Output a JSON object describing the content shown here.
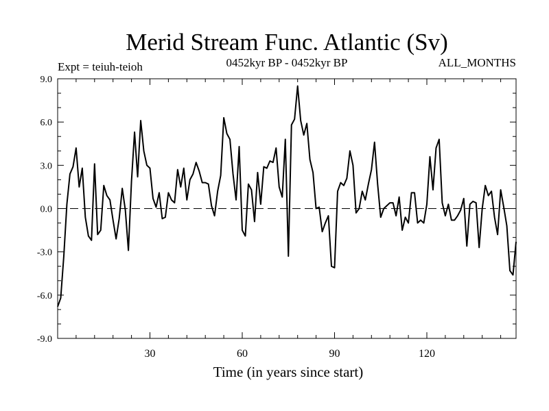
{
  "chart_data": {
    "type": "line",
    "title": "Merid Stream Func. Atlantic (Sv)",
    "subtitle_left": "Expt = teiuh-teioh",
    "subtitle_center": "0452kyr BP - 0452kyr BP",
    "subtitle_right": "ALL_MONTHS",
    "xlabel": "Time (in years since start)",
    "ylabel": "",
    "xlim": [
      0,
      149
    ],
    "ylim": [
      -9,
      9
    ],
    "xticks": [
      30,
      60,
      90,
      120
    ],
    "xtick_labels": [
      "30",
      "60",
      "90",
      "120"
    ],
    "yticks": [
      9,
      6,
      3,
      0,
      -3,
      -6,
      -9
    ],
    "ytick_labels": [
      "9.0",
      "6.0",
      "3.0",
      "0.0",
      "-3.0",
      "-6.0",
      "-9.0"
    ],
    "zero_line": true,
    "grid": false,
    "series": [
      {
        "values": [
          -6.8,
          -6.2,
          -3.3,
          0.3,
          2.4,
          2.9,
          4.2,
          1.5,
          2.8,
          -0.6,
          -1.9,
          -2.2,
          3.1,
          -1.8,
          -1.5,
          1.6,
          0.9,
          0.6,
          -0.8,
          -2.1,
          -0.7,
          1.4,
          -0.1,
          -2.9,
          1.9,
          5.3,
          2.2,
          6.1,
          4.0,
          3.0,
          2.8,
          0.7,
          0.1,
          1.1,
          -0.7,
          -0.6,
          1.1,
          0.6,
          0.4,
          2.7,
          1.5,
          2.8,
          0.6,
          2.0,
          2.4,
          3.2,
          2.6,
          1.8,
          1.8,
          1.7,
          0.2,
          -0.5,
          1.2,
          2.3,
          6.3,
          5.2,
          4.8,
          2.4,
          0.6,
          4.3,
          -1.5,
          -1.9,
          1.7,
          1.3,
          -0.9,
          2.5,
          0.3,
          2.9,
          2.8,
          3.3,
          3.2,
          4.2,
          1.5,
          0.8,
          4.8,
          -3.3,
          5.8,
          6.2,
          8.5,
          6.1,
          5.1,
          5.9,
          3.4,
          2.5,
          0.0,
          0.1,
          -1.6,
          -1.0,
          -0.5,
          -4.0,
          -4.1,
          1.2,
          1.8,
          1.6,
          2.1,
          4.0,
          3.0,
          -0.3,
          0.0,
          1.2,
          0.6,
          1.7,
          2.7,
          4.6,
          1.7,
          -0.6,
          0.0,
          0.2,
          0.4,
          0.4,
          -0.5,
          0.8,
          -1.5,
          -0.6,
          -1.0,
          1.1,
          1.1,
          -1.0,
          -0.8,
          -1.0,
          0.3,
          3.6,
          1.3,
          4.2,
          4.8,
          0.4,
          -0.5,
          0.3,
          -0.8,
          -0.8,
          -0.5,
          -0.1,
          0.7,
          -2.6,
          0.3,
          0.5,
          0.4,
          -2.7,
          0.0,
          1.6,
          0.9,
          1.2,
          -0.6,
          -1.8,
          1.3,
          0.1,
          -1.2,
          -4.3,
          -4.6,
          -2.3
        ]
      }
    ]
  }
}
